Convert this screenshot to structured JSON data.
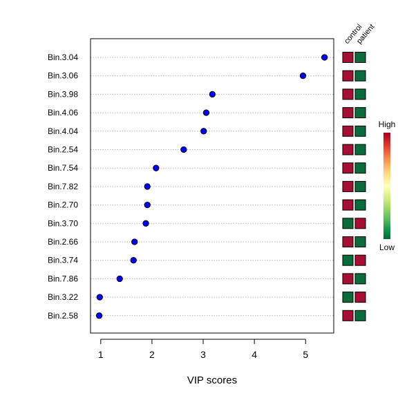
{
  "chart_data": {
    "type": "scatter",
    "title": "",
    "xlabel": "VIP scores",
    "ylabel": "",
    "xlim": [
      0.8,
      5.55
    ],
    "xticks": [
      1,
      2,
      3,
      4,
      5
    ],
    "grid": "horizontal dotted",
    "marker_color": "#0000ee",
    "categories": [
      "Bin.3.04",
      "Bin.3.06",
      "Bin.3.98",
      "Bin.4.06",
      "Bin.4.04",
      "Bin.2.54",
      "Bin.7.54",
      "Bin.7.82",
      "Bin.2.70",
      "Bin.3.70",
      "Bin.2.66",
      "Bin.3.74",
      "Bin.7.86",
      "Bin.3.22",
      "Bin.2.58"
    ],
    "values": [
      5.37,
      4.95,
      3.18,
      3.06,
      3.01,
      2.62,
      2.08,
      1.91,
      1.91,
      1.88,
      1.66,
      1.64,
      1.37,
      0.98,
      0.97
    ],
    "groups": [
      "control",
      "patient"
    ],
    "heatmap": [
      [
        "high",
        "low"
      ],
      [
        "high",
        "low"
      ],
      [
        "high",
        "low"
      ],
      [
        "high",
        "low"
      ],
      [
        "high",
        "low"
      ],
      [
        "high",
        "low"
      ],
      [
        "high",
        "low"
      ],
      [
        "high",
        "low"
      ],
      [
        "high",
        "low"
      ],
      [
        "low",
        "high"
      ],
      [
        "high",
        "low"
      ],
      [
        "low",
        "high"
      ],
      [
        "high",
        "low"
      ],
      [
        "low",
        "high"
      ],
      [
        "high",
        "low"
      ]
    ],
    "colors": {
      "high": "#a50f33",
      "low": "#0b6b3a"
    },
    "legend": {
      "high_label": "High",
      "low_label": "Low",
      "placement": "right",
      "gradient": [
        "#a50026",
        "#d73027",
        "#f46d43",
        "#fdae61",
        "#fee08b",
        "#ffffbf",
        "#d9ef8b",
        "#a6d96a",
        "#66bd63",
        "#1a9850",
        "#006837"
      ]
    }
  }
}
